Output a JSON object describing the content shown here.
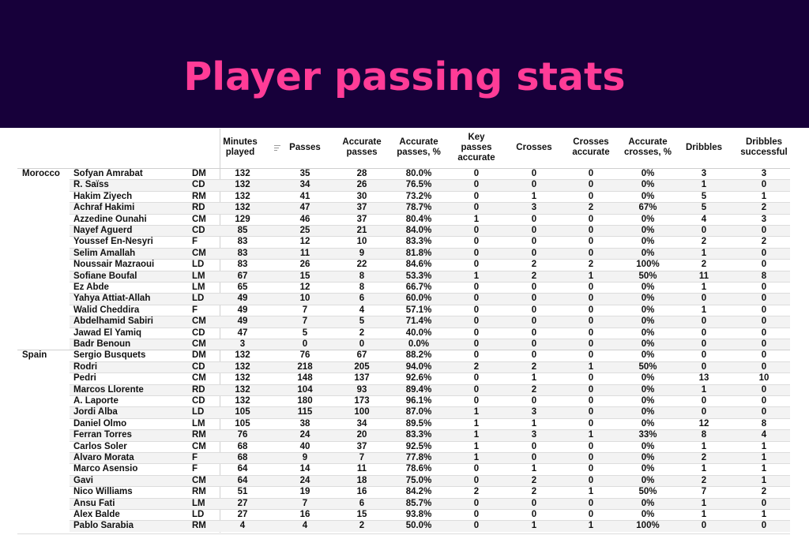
{
  "header": {
    "title": "Player passing stats",
    "background": "#17003a",
    "title_color": "#ff3c97"
  },
  "table": {
    "columns": [
      {
        "key": "minutes",
        "label": "Minutes played",
        "sortable": true
      },
      {
        "key": "passes",
        "label": "Passes"
      },
      {
        "key": "acc_passes",
        "label": "Accurate passes"
      },
      {
        "key": "acc_pct",
        "label": "Accurate passes, %"
      },
      {
        "key": "key_passes",
        "label": "Key passes accurate"
      },
      {
        "key": "crosses",
        "label": "Crosses"
      },
      {
        "key": "crosses_acc",
        "label": "Crosses accurate"
      },
      {
        "key": "acc_crosses_pct",
        "label": "Accurate crosses, %"
      },
      {
        "key": "dribbles",
        "label": "Dribbles"
      },
      {
        "key": "dribbles_succ",
        "label": "Dribbles successful"
      }
    ],
    "rows": [
      {
        "team": "Morocco",
        "name": "Sofyan Amrabat",
        "pos": "DM",
        "v": [
          "132",
          "35",
          "28",
          "80.0%",
          "0",
          "0",
          "0",
          "0%",
          "3",
          "3"
        ]
      },
      {
        "team": "",
        "name": "R. Saïss",
        "pos": "CD",
        "v": [
          "132",
          "34",
          "26",
          "76.5%",
          "0",
          "0",
          "0",
          "0%",
          "1",
          "0"
        ]
      },
      {
        "team": "",
        "name": "Hakim Ziyech",
        "pos": "RM",
        "v": [
          "132",
          "41",
          "30",
          "73.2%",
          "0",
          "1",
          "0",
          "0%",
          "5",
          "1"
        ]
      },
      {
        "team": "",
        "name": "Achraf Hakimi",
        "pos": "RD",
        "v": [
          "132",
          "47",
          "37",
          "78.7%",
          "0",
          "3",
          "2",
          "67%",
          "5",
          "2"
        ]
      },
      {
        "team": "",
        "name": "Azzedine Ounahi",
        "pos": "CM",
        "v": [
          "129",
          "46",
          "37",
          "80.4%",
          "1",
          "0",
          "0",
          "0%",
          "4",
          "3"
        ]
      },
      {
        "team": "",
        "name": "Nayef Aguerd",
        "pos": "CD",
        "v": [
          "85",
          "25",
          "21",
          "84.0%",
          "0",
          "0",
          "0",
          "0%",
          "0",
          "0"
        ]
      },
      {
        "team": "",
        "name": "Youssef En-Nesyri",
        "pos": "F",
        "v": [
          "83",
          "12",
          "10",
          "83.3%",
          "0",
          "0",
          "0",
          "0%",
          "2",
          "2"
        ]
      },
      {
        "team": "",
        "name": "Selim Amallah",
        "pos": "CM",
        "v": [
          "83",
          "11",
          "9",
          "81.8%",
          "0",
          "0",
          "0",
          "0%",
          "1",
          "0"
        ]
      },
      {
        "team": "",
        "name": "Noussair Mazraoui",
        "pos": "LD",
        "v": [
          "83",
          "26",
          "22",
          "84.6%",
          "0",
          "2",
          "2",
          "100%",
          "2",
          "0"
        ]
      },
      {
        "team": "",
        "name": "Sofiane Boufal",
        "pos": "LM",
        "v": [
          "67",
          "15",
          "8",
          "53.3%",
          "1",
          "2",
          "1",
          "50%",
          "11",
          "8"
        ]
      },
      {
        "team": "",
        "name": "Ez Abde",
        "pos": "LM",
        "v": [
          "65",
          "12",
          "8",
          "66.7%",
          "0",
          "0",
          "0",
          "0%",
          "1",
          "0"
        ]
      },
      {
        "team": "",
        "name": "Yahya Attiat-Allah",
        "pos": "LD",
        "v": [
          "49",
          "10",
          "6",
          "60.0%",
          "0",
          "0",
          "0",
          "0%",
          "0",
          "0"
        ]
      },
      {
        "team": "",
        "name": "Walid Cheddira",
        "pos": "F",
        "v": [
          "49",
          "7",
          "4",
          "57.1%",
          "0",
          "0",
          "0",
          "0%",
          "1",
          "0"
        ]
      },
      {
        "team": "",
        "name": "Abdelhamid Sabiri",
        "pos": "CM",
        "v": [
          "49",
          "7",
          "5",
          "71.4%",
          "0",
          "0",
          "0",
          "0%",
          "0",
          "0"
        ]
      },
      {
        "team": "",
        "name": "Jawad El Yamiq",
        "pos": "CD",
        "v": [
          "47",
          "5",
          "2",
          "40.0%",
          "0",
          "0",
          "0",
          "0%",
          "0",
          "0"
        ]
      },
      {
        "team": "",
        "name": "Badr Benoun",
        "pos": "CM",
        "v": [
          "3",
          "0",
          "0",
          "0.0%",
          "0",
          "0",
          "0",
          "0%",
          "0",
          "0"
        ]
      },
      {
        "team": "Spain",
        "name": "Sergio Busquets",
        "pos": "DM",
        "v": [
          "132",
          "76",
          "67",
          "88.2%",
          "0",
          "0",
          "0",
          "0%",
          "0",
          "0"
        ]
      },
      {
        "team": "",
        "name": "Rodri",
        "pos": "CD",
        "v": [
          "132",
          "218",
          "205",
          "94.0%",
          "2",
          "2",
          "1",
          "50%",
          "0",
          "0"
        ]
      },
      {
        "team": "",
        "name": "Pedri",
        "pos": "CM",
        "v": [
          "132",
          "148",
          "137",
          "92.6%",
          "0",
          "1",
          "0",
          "0%",
          "13",
          "10"
        ]
      },
      {
        "team": "",
        "name": "Marcos Llorente",
        "pos": "RD",
        "v": [
          "132",
          "104",
          "93",
          "89.4%",
          "0",
          "2",
          "0",
          "0%",
          "1",
          "0"
        ]
      },
      {
        "team": "",
        "name": "A. Laporte",
        "pos": "CD",
        "v": [
          "132",
          "180",
          "173",
          "96.1%",
          "0",
          "0",
          "0",
          "0%",
          "0",
          "0"
        ]
      },
      {
        "team": "",
        "name": "Jordi Alba",
        "pos": "LD",
        "v": [
          "105",
          "115",
          "100",
          "87.0%",
          "1",
          "3",
          "0",
          "0%",
          "0",
          "0"
        ]
      },
      {
        "team": "",
        "name": "Daniel Olmo",
        "pos": "LM",
        "v": [
          "105",
          "38",
          "34",
          "89.5%",
          "1",
          "1",
          "0",
          "0%",
          "12",
          "8"
        ]
      },
      {
        "team": "",
        "name": "Ferran Torres",
        "pos": "RM",
        "v": [
          "76",
          "24",
          "20",
          "83.3%",
          "1",
          "3",
          "1",
          "33%",
          "8",
          "4"
        ]
      },
      {
        "team": "",
        "name": "Carlos Soler",
        "pos": "CM",
        "v": [
          "68",
          "40",
          "37",
          "92.5%",
          "1",
          "0",
          "0",
          "0%",
          "1",
          "1"
        ]
      },
      {
        "team": "",
        "name": "Alvaro Morata",
        "pos": "F",
        "v": [
          "68",
          "9",
          "7",
          "77.8%",
          "1",
          "0",
          "0",
          "0%",
          "2",
          "1"
        ]
      },
      {
        "team": "",
        "name": "Marco Asensio",
        "pos": "F",
        "v": [
          "64",
          "14",
          "11",
          "78.6%",
          "0",
          "1",
          "0",
          "0%",
          "1",
          "1"
        ]
      },
      {
        "team": "",
        "name": "Gavi",
        "pos": "CM",
        "v": [
          "64",
          "24",
          "18",
          "75.0%",
          "0",
          "2",
          "0",
          "0%",
          "2",
          "1"
        ]
      },
      {
        "team": "",
        "name": "Nico Williams",
        "pos": "RM",
        "v": [
          "51",
          "19",
          "16",
          "84.2%",
          "2",
          "2",
          "1",
          "50%",
          "7",
          "2"
        ]
      },
      {
        "team": "",
        "name": "Ansu Fati",
        "pos": "LM",
        "v": [
          "27",
          "7",
          "6",
          "85.7%",
          "0",
          "0",
          "0",
          "0%",
          "1",
          "0"
        ]
      },
      {
        "team": "",
        "name": "Alex Balde",
        "pos": "LD",
        "v": [
          "27",
          "16",
          "15",
          "93.8%",
          "0",
          "0",
          "0",
          "0%",
          "1",
          "1"
        ]
      },
      {
        "team": "",
        "name": "Pablo Sarabia",
        "pos": "RM",
        "v": [
          "4",
          "4",
          "2",
          "50.0%",
          "0",
          "1",
          "1",
          "100%",
          "0",
          "0"
        ]
      }
    ]
  }
}
